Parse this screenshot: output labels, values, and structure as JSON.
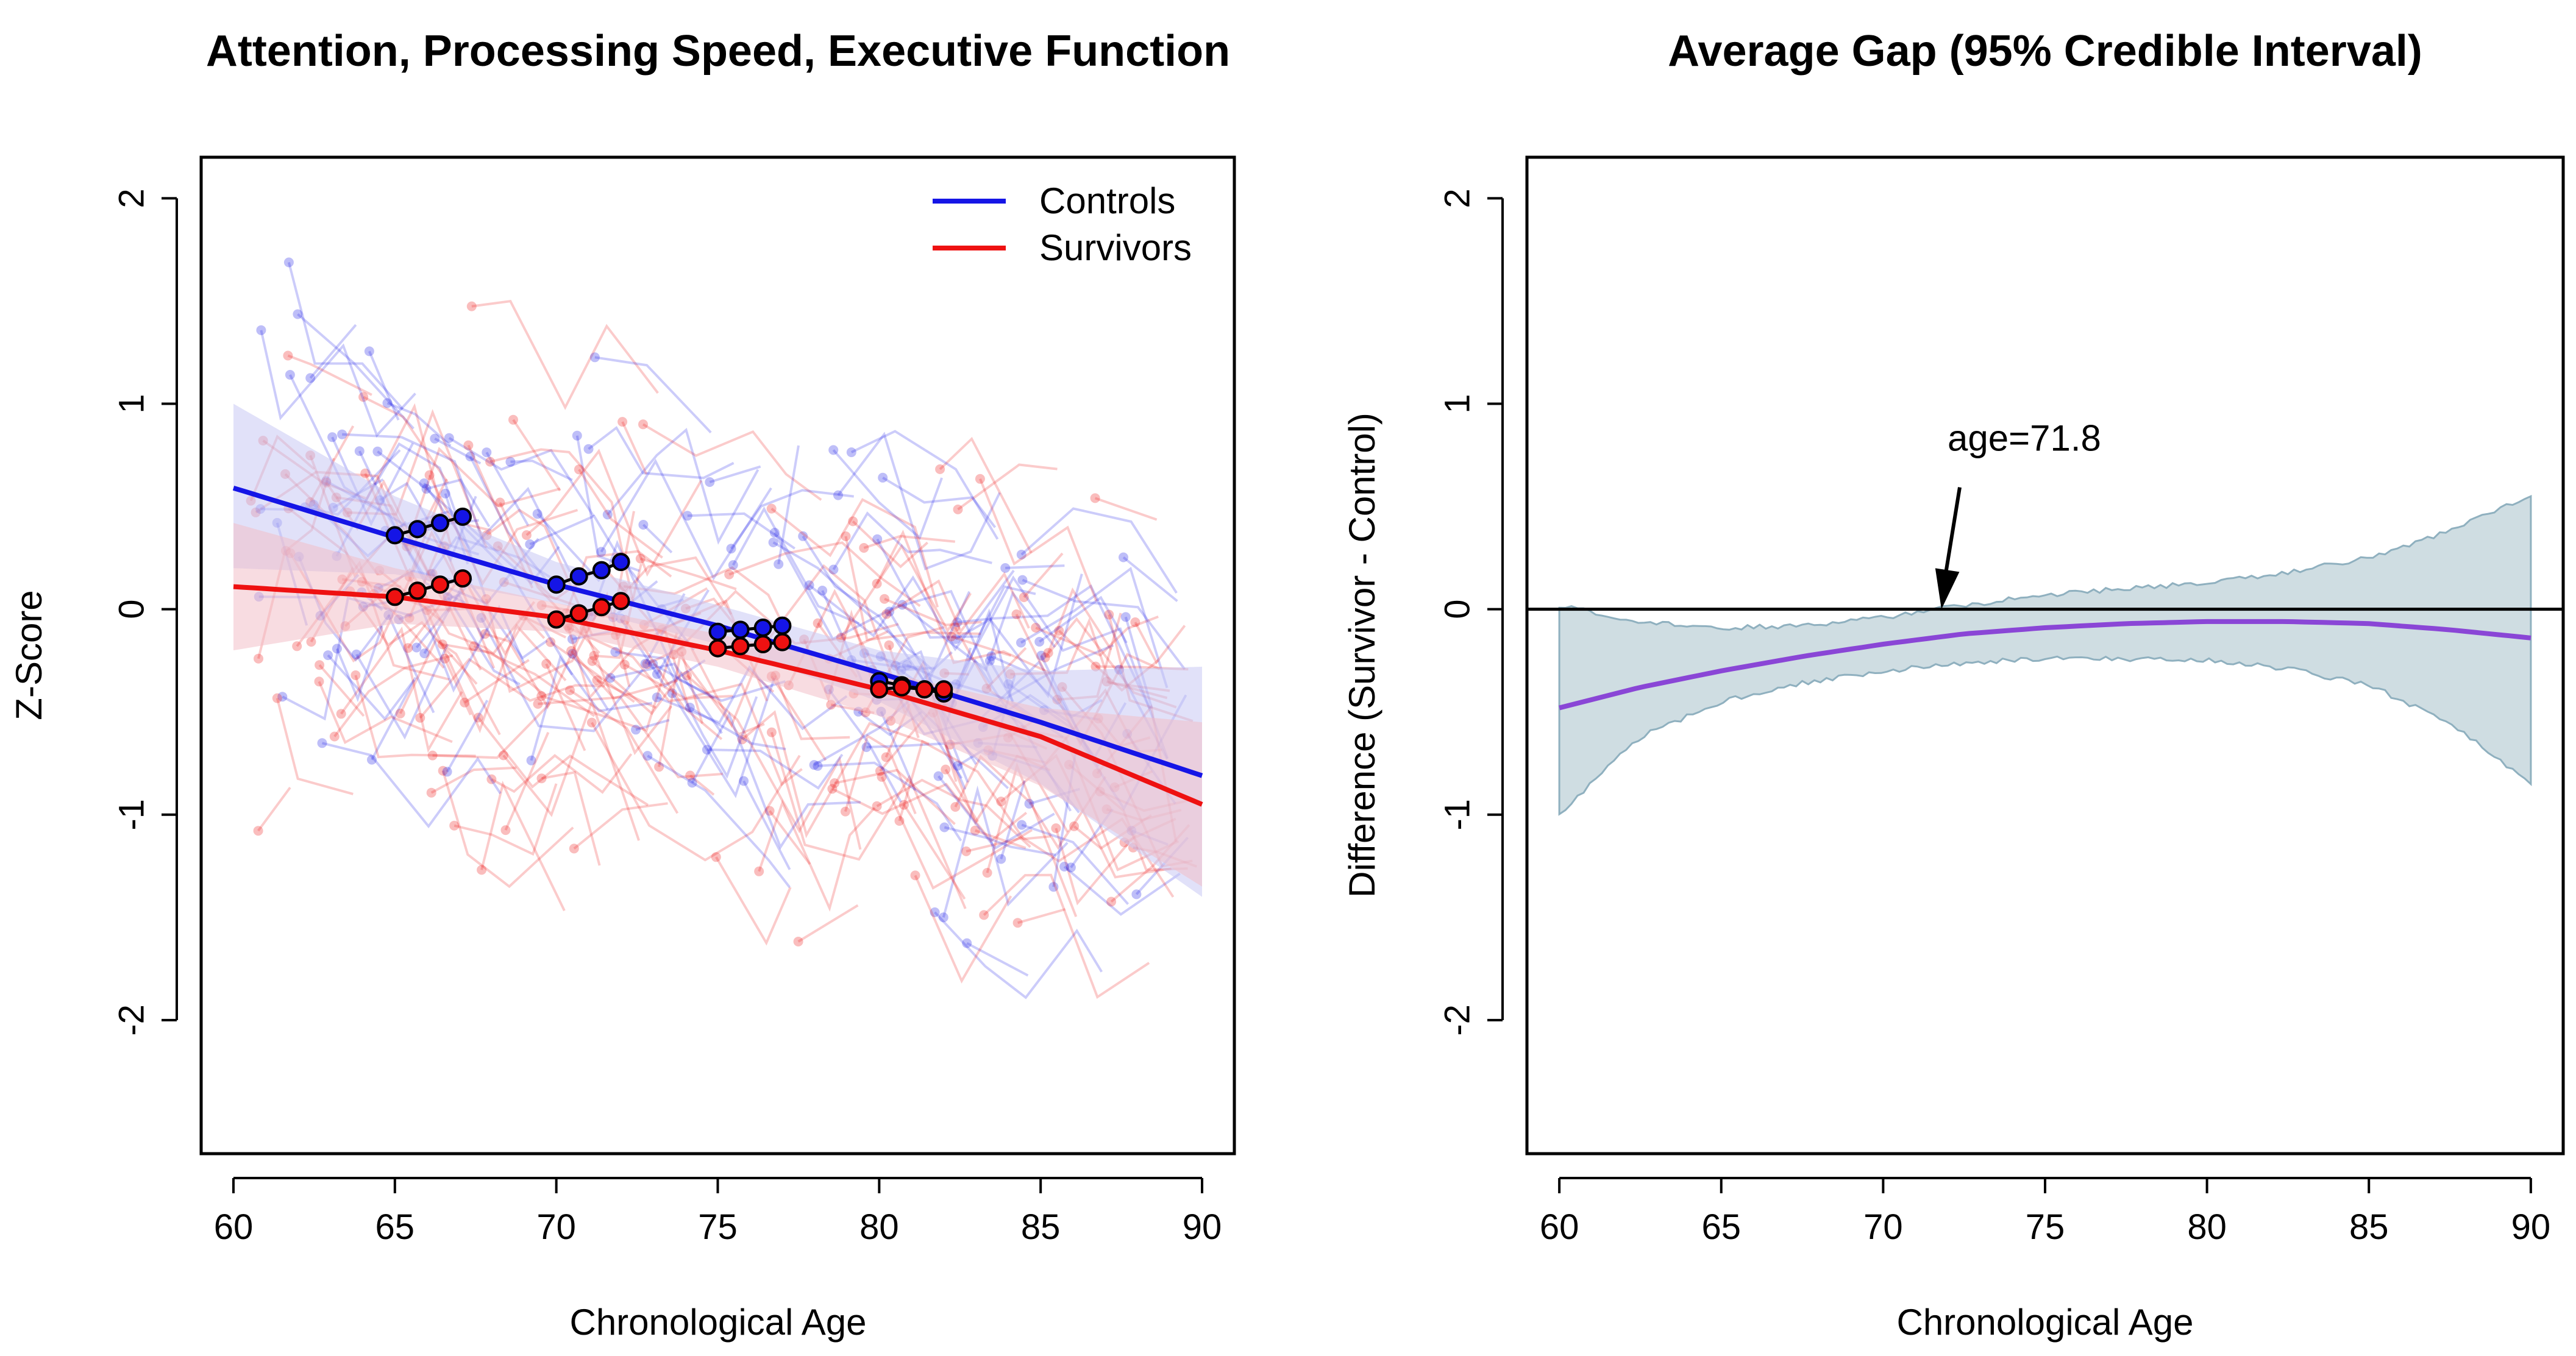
{
  "colors": {
    "controls": "#1515e6",
    "survivors": "#ee1111",
    "gap_line": "#8a46d6",
    "gap_band": "#cfdde2",
    "gap_band_edge": "#8fb0bf",
    "control_band": "#c9c9f4",
    "survivor_band": "#f2c0c9"
  },
  "chart_data": [
    {
      "type": "line",
      "title": "Attention, Processing Speed, Executive Function",
      "xlabel": "Chronological Age",
      "ylabel": "Z-Score",
      "xlim": [
        59,
        91
      ],
      "ylim": [
        -2.65,
        2.2
      ],
      "xticks": [
        60,
        65,
        70,
        75,
        80,
        85,
        90
      ],
      "yticks": [
        -2,
        -1,
        0,
        1,
        2
      ],
      "xtick_labels": [
        "60",
        "65",
        "70",
        "75",
        "80",
        "85",
        "90"
      ],
      "ytick_labels": [
        "-2",
        "-1",
        "0",
        "1",
        "2"
      ],
      "legend": {
        "position": "top-right",
        "entries": [
          "Controls",
          "Survivors"
        ]
      },
      "series": [
        {
          "name": "Controls",
          "x": [
            60,
            65,
            70,
            75,
            80,
            85,
            90
          ],
          "y": [
            0.59,
            0.35,
            0.12,
            -0.08,
            -0.31,
            -0.55,
            -0.81
          ],
          "ci_lower": [
            0.2,
            0.17,
            0.03,
            -0.17,
            -0.45,
            -0.85,
            -1.4
          ],
          "ci_upper": [
            1.0,
            0.55,
            0.23,
            0.02,
            -0.2,
            -0.3,
            -0.28
          ],
          "highlight_points": [
            {
              "x": 65.0,
              "y": 0.36
            },
            {
              "x": 65.7,
              "y": 0.39
            },
            {
              "x": 66.4,
              "y": 0.42
            },
            {
              "x": 67.1,
              "y": 0.45
            },
            {
              "x": 70.0,
              "y": 0.12
            },
            {
              "x": 70.7,
              "y": 0.16
            },
            {
              "x": 71.4,
              "y": 0.19
            },
            {
              "x": 72.0,
              "y": 0.23
            },
            {
              "x": 75.0,
              "y": -0.11
            },
            {
              "x": 75.7,
              "y": -0.1
            },
            {
              "x": 76.4,
              "y": -0.09
            },
            {
              "x": 77.0,
              "y": -0.08
            },
            {
              "x": 80.0,
              "y": -0.35
            },
            {
              "x": 80.7,
              "y": -0.37
            },
            {
              "x": 81.4,
              "y": -0.39
            },
            {
              "x": 82.0,
              "y": -0.41
            }
          ]
        },
        {
          "name": "Survivors",
          "x": [
            60,
            65,
            70,
            75,
            80,
            85,
            90
          ],
          "y": [
            0.11,
            0.06,
            -0.04,
            -0.2,
            -0.39,
            -0.62,
            -0.95
          ],
          "ci_lower": [
            -0.2,
            -0.07,
            -0.11,
            -0.28,
            -0.52,
            -0.86,
            -1.35
          ],
          "ci_upper": [
            0.42,
            0.2,
            0.03,
            -0.12,
            -0.3,
            -0.48,
            -0.55
          ],
          "highlight_points": [
            {
              "x": 65.0,
              "y": 0.06
            },
            {
              "x": 65.7,
              "y": 0.09
            },
            {
              "x": 66.4,
              "y": 0.12
            },
            {
              "x": 67.1,
              "y": 0.15
            },
            {
              "x": 70.0,
              "y": -0.05
            },
            {
              "x": 70.7,
              "y": -0.02
            },
            {
              "x": 71.4,
              "y": 0.01
            },
            {
              "x": 72.0,
              "y": 0.04
            },
            {
              "x": 75.0,
              "y": -0.19
            },
            {
              "x": 75.7,
              "y": -0.18
            },
            {
              "x": 76.4,
              "y": -0.17
            },
            {
              "x": 77.0,
              "y": -0.16
            },
            {
              "x": 80.0,
              "y": -0.39
            },
            {
              "x": 80.7,
              "y": -0.38
            },
            {
              "x": 81.4,
              "y": -0.39
            },
            {
              "x": 82.0,
              "y": -0.39
            }
          ]
        }
      ]
    },
    {
      "type": "area",
      "title": "Average Gap (95% Credible Interval)",
      "xlabel": "Chronological Age",
      "ylabel": "Difference (Survivor - Control)",
      "xlim": [
        59,
        91
      ],
      "ylim": [
        -2.65,
        2.2
      ],
      "xticks": [
        60,
        65,
        70,
        75,
        80,
        85,
        90
      ],
      "yticks": [
        -2,
        -1,
        0,
        1,
        2
      ],
      "xtick_labels": [
        "60",
        "65",
        "70",
        "75",
        "80",
        "85",
        "90"
      ],
      "ytick_labels": [
        "-2",
        "-1",
        "0",
        "1",
        "2"
      ],
      "reference_line_y": 0,
      "series": [
        {
          "name": "Difference",
          "x": [
            60,
            62.5,
            65,
            67.5,
            70,
            72.5,
            75,
            77.5,
            80,
            82.5,
            85,
            87.5,
            90
          ],
          "y": [
            -0.48,
            -0.38,
            -0.3,
            -0.23,
            -0.17,
            -0.12,
            -0.09,
            -0.07,
            -0.06,
            -0.06,
            -0.07,
            -0.1,
            -0.14
          ],
          "ci_lower": [
            -1.0,
            -0.62,
            -0.45,
            -0.36,
            -0.3,
            -0.26,
            -0.24,
            -0.24,
            -0.25,
            -0.29,
            -0.37,
            -0.55,
            -0.85
          ],
          "ci_upper": [
            0.02,
            -0.06,
            -0.09,
            -0.08,
            -0.04,
            0.02,
            0.07,
            0.1,
            0.13,
            0.18,
            0.25,
            0.38,
            0.56
          ]
        }
      ],
      "annotation": {
        "text": "age=71.8",
        "x": 71.8,
        "y": 0
      }
    }
  ]
}
